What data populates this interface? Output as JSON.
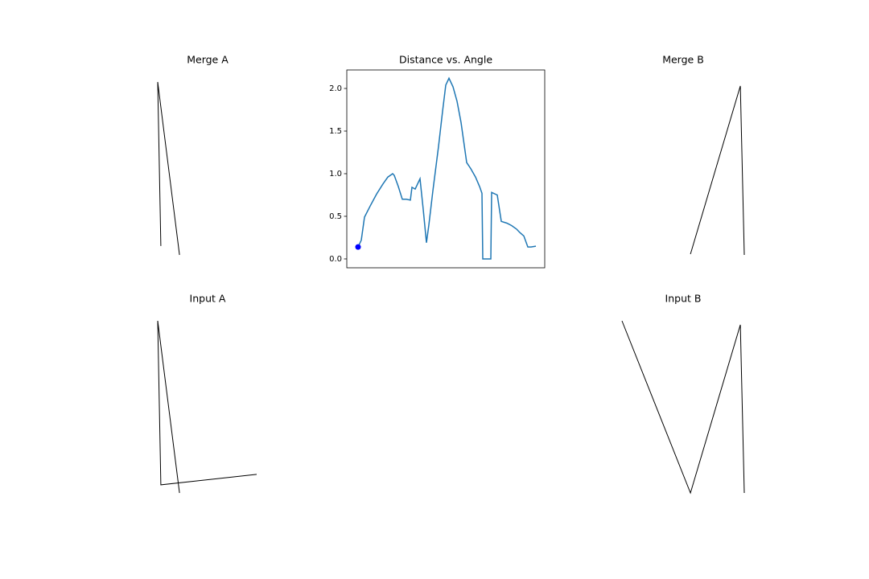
{
  "chart_data": [
    {
      "type": "polyline",
      "title": "Merge A",
      "x": [
        0.264,
        0.248,
        0.358
      ],
      "y": [
        0.11,
        0.939,
        0.065
      ],
      "xlim": [
        0,
        1
      ],
      "ylim": [
        0,
        1
      ],
      "color": "#000000",
      "frame": false
    },
    {
      "type": "line",
      "title": "Distance vs. Angle",
      "x": [
        14,
        18,
        22,
        29,
        37,
        45,
        51,
        57,
        59,
        64,
        69,
        74,
        79,
        81,
        85,
        91,
        95,
        99,
        102,
        107,
        114,
        119,
        123,
        127,
        132,
        137,
        142,
        149,
        154,
        160,
        165,
        168,
        169,
        179,
        180,
        187,
        192,
        199,
        205,
        211,
        215,
        220,
        225,
        229,
        235
      ],
      "y": [
        0.14,
        0.22,
        0.49,
        0.62,
        0.76,
        0.88,
        0.96,
        1.0,
        0.98,
        0.85,
        0.7,
        0.7,
        0.69,
        0.84,
        0.82,
        0.94,
        0.58,
        0.19,
        0.4,
        0.8,
        1.32,
        1.73,
        2.04,
        2.12,
        2.02,
        1.85,
        1.6,
        1.13,
        1.06,
        0.96,
        0.85,
        0.77,
        0.0,
        0.0,
        0.78,
        0.75,
        0.44,
        0.42,
        0.39,
        0.35,
        0.31,
        0.27,
        0.14,
        0.14,
        0.15
      ],
      "xlim": [
        0,
        246
      ],
      "ylim": [
        -0.104,
        2.217
      ],
      "yticks": [
        {
          "value": 0,
          "label": "0.0"
        },
        0.5,
        {
          "value": 1,
          "label": "1.0"
        },
        1.5,
        {
          "value": 2,
          "label": "2.0"
        }
      ],
      "color": "#1f77b4",
      "frame": true,
      "point": {
        "x": 14,
        "y": 0.14,
        "color": "#0000ff"
      }
    },
    {
      "type": "polyline",
      "title": "Merge B",
      "x": [
        0.537,
        0.789,
        0.809
      ],
      "y": [
        0.069,
        0.919,
        0.065
      ],
      "xlim": [
        0,
        1
      ],
      "ylim": [
        0,
        1
      ],
      "color": "#000000",
      "frame": false
    },
    {
      "type": "polyline",
      "title": "Input A",
      "x": [
        0.748,
        0.264,
        0.248,
        0.358
      ],
      "y": [
        0.163,
        0.11,
        0.939,
        0.069
      ],
      "xlim": [
        0,
        1
      ],
      "ylim": [
        0,
        1
      ],
      "color": "#000000",
      "frame": false
    },
    {
      "type": "polyline",
      "title": "Input B",
      "x": [
        0.191,
        0.537,
        0.789,
        0.809
      ],
      "y": [
        0.939,
        0.069,
        0.919,
        0.069
      ],
      "xlim": [
        0,
        1
      ],
      "ylim": [
        0,
        1
      ],
      "color": "#000000",
      "frame": false
    }
  ]
}
